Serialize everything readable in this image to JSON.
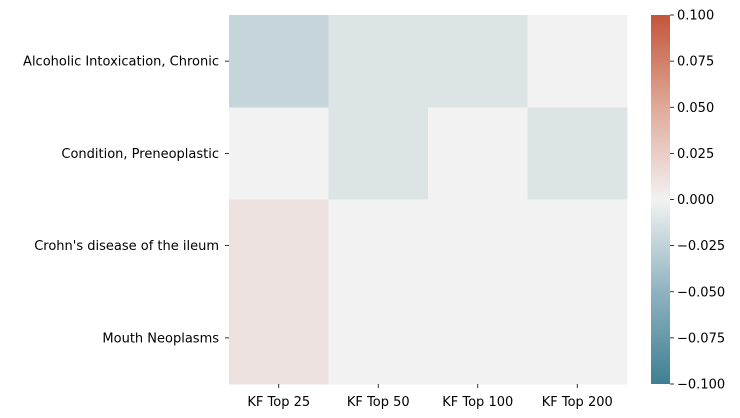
{
  "chart_data": {
    "type": "heatmap",
    "title": "",
    "xlabel": "",
    "ylabel": "",
    "x_categories": [
      "KF Top 25",
      "KF Top 50",
      "KF Top 100",
      "KF Top 200"
    ],
    "y_categories": [
      "Alcoholic Intoxication, Chronic",
      "Condition, Preneoplastic",
      "Crohn's disease of the ileum",
      "Mouth Neoplasms"
    ],
    "values": [
      [
        -0.025,
        -0.0125,
        -0.0125,
        0.0
      ],
      [
        0.0,
        -0.0125,
        0.0,
        -0.0125
      ],
      [
        0.01,
        0.0,
        0.0,
        0.0
      ],
      [
        0.01,
        0.0,
        0.0,
        0.0
      ]
    ],
    "colorbar": {
      "range": [
        -0.1,
        0.1
      ],
      "ticks": [
        0.1,
        0.075,
        0.05,
        0.025,
        0.0,
        -0.025,
        -0.05,
        -0.075,
        -0.1
      ],
      "tick_labels": [
        "0.100",
        "0.075",
        "0.050",
        "0.025",
        "0.000",
        "−0.025",
        "−0.050",
        "−0.075",
        "−0.100"
      ],
      "colormap": "diverging",
      "low_color": "#3f7f93",
      "mid_color": "#f2f2f2",
      "high_color": "#c3553a"
    }
  }
}
